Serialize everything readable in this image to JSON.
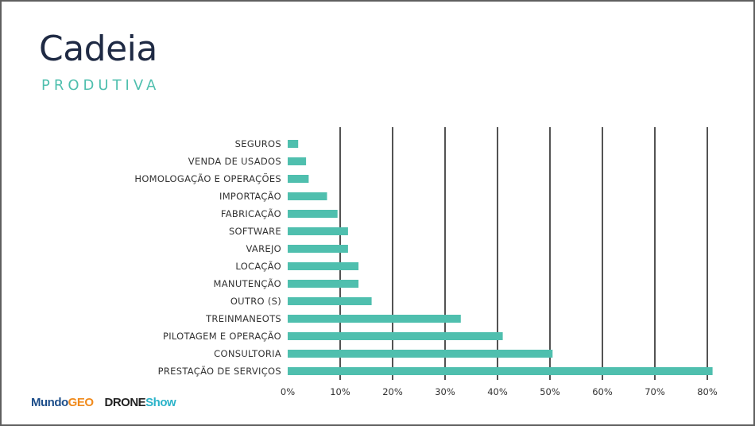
{
  "slide": {
    "title": "Cadeia",
    "subtitle": "PRODUTIVA"
  },
  "logos": {
    "mundo_main": "Mundo",
    "mundo_accent": "GEO",
    "drone_main": "DRONE",
    "drone_accent": "Show"
  },
  "colors": {
    "bar": "#4fbfae",
    "gridline": "#1a1a1a",
    "title": "#1f2a44",
    "subtitle": "#4fbfae"
  },
  "chart_data": {
    "type": "bar",
    "orientation": "horizontal",
    "categories": [
      "SEGUROS",
      "VENDA DE USADOS",
      "HOMOLOGAÇÃO E OPERAÇÕES",
      "IMPORTAÇÃO",
      "FABRICAÇÃO",
      "SOFTWARE",
      "VAREJO",
      "LOCAÇÃO",
      "MANUTENÇÃO",
      "OUTRO (S)",
      "TREINMANEOTS",
      "PILOTAGEM E OPERAÇÃO",
      "CONSULTORIA",
      "PRESTAÇÃO DE SERVIÇOS"
    ],
    "values": [
      2,
      3.5,
      4,
      7.5,
      9.5,
      11.5,
      11.5,
      13.5,
      13.5,
      16,
      33,
      41,
      50.5,
      81
    ],
    "xlim": [
      0,
      80
    ],
    "xticks": [
      "0%",
      "10%",
      "20%",
      "30%",
      "40%",
      "50%",
      "60%",
      "70%",
      "80%"
    ],
    "xtick_values": [
      0,
      10,
      20,
      30,
      40,
      50,
      60,
      70,
      80
    ],
    "grid": "vertical",
    "legend": "none"
  }
}
